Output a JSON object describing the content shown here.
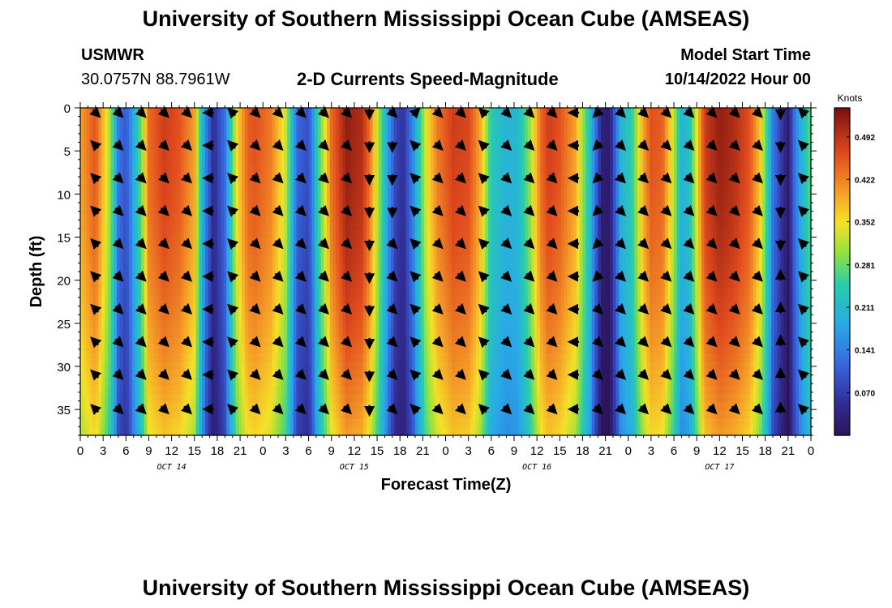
{
  "header": {
    "title": "University of Southern Mississippi Ocean Cube (AMSEAS)",
    "station": "USMWR",
    "location": "30.0757N  88.7961W",
    "subtitle": "2-D Currents Speed-Magnitude",
    "model_start_label": "Model Start Time",
    "model_start_value": "10/14/2022 Hour 00"
  },
  "footer": {
    "title": "University of Southern Mississippi Ocean Cube (AMSEAS)"
  },
  "chart_data": {
    "type": "heatmap",
    "title": "2-D Currents Speed-Magnitude",
    "xlabel": "Forecast Time(Z)",
    "ylabel": "Depth (ft)",
    "x_range_hours": [
      0,
      96
    ],
    "y_range_ft": [
      0,
      38
    ],
    "x_ticks": [
      "0",
      "3",
      "6",
      "9",
      "12",
      "15",
      "18",
      "21",
      "0",
      "3",
      "6",
      "9",
      "12",
      "15",
      "18",
      "21",
      "0",
      "3",
      "6",
      "9",
      "12",
      "15",
      "18",
      "21",
      "0",
      "3",
      "6",
      "9",
      "12",
      "15",
      "18",
      "21",
      "0"
    ],
    "y_ticks": [
      0,
      5,
      10,
      15,
      20,
      25,
      30,
      35
    ],
    "date_labels": [
      {
        "label": "OCT 14",
        "hour": 12
      },
      {
        "label": "OCT 15",
        "hour": 36
      },
      {
        "label": "OCT 16",
        "hour": 60
      },
      {
        "label": "OCT 17",
        "hour": 84
      }
    ],
    "colorbar": {
      "unit": "Knots",
      "min": 0.0,
      "max": 0.54,
      "ticks": [
        "0.492",
        "0.422",
        "0.352",
        "0.281",
        "0.211",
        "0.141",
        "0.070"
      ],
      "tick_values": [
        0.492,
        0.422,
        0.352,
        0.281,
        0.211,
        0.141,
        0.07
      ]
    },
    "speed_profile_hours": [
      0,
      2,
      4,
      5,
      6,
      8,
      9,
      11,
      13,
      15,
      16,
      17.5,
      19,
      20.5,
      22,
      23,
      25,
      27,
      28.5,
      30,
      31,
      33,
      35,
      37,
      38,
      40,
      41.5,
      42.5,
      44,
      45.5,
      47,
      49,
      51,
      52.5,
      54,
      56,
      57.5,
      59,
      60.5,
      61.5,
      63,
      65,
      67,
      68.5,
      69.5,
      71,
      72.5,
      74,
      75,
      76.5,
      78,
      79,
      80,
      82,
      84,
      86,
      88,
      89.5,
      91,
      93,
      94,
      96
    ],
    "speed_profile_knots": [
      0.4,
      0.46,
      0.3,
      0.14,
      0.1,
      0.28,
      0.44,
      0.48,
      0.46,
      0.4,
      0.2,
      0.05,
      0.13,
      0.35,
      0.45,
      0.46,
      0.43,
      0.33,
      0.12,
      0.09,
      0.22,
      0.44,
      0.52,
      0.5,
      0.44,
      0.22,
      0.08,
      0.06,
      0.18,
      0.35,
      0.43,
      0.48,
      0.47,
      0.4,
      0.24,
      0.2,
      0.21,
      0.3,
      0.44,
      0.48,
      0.46,
      0.4,
      0.22,
      0.03,
      0.02,
      0.2,
      0.25,
      0.4,
      0.46,
      0.45,
      0.32,
      0.2,
      0.22,
      0.48,
      0.52,
      0.5,
      0.46,
      0.36,
      0.14,
      0.02,
      0.15,
      0.28
    ],
    "arrow_columns": [
      {
        "hour": 2,
        "dirs": [
          "SE",
          "NW",
          "NW",
          "NW",
          "NW",
          "NW",
          "NW",
          "NW",
          "NW",
          "NW"
        ]
      },
      {
        "hour": 5,
        "dirs": [
          "SE",
          "SE",
          "SE",
          "SE",
          "SE",
          "SE",
          "SE",
          "SE",
          "SE",
          "SE"
        ]
      },
      {
        "hour": 8,
        "dirs": [
          "SE",
          "SE",
          "SE",
          "SE",
          "SE",
          "SE",
          "SE",
          "SE",
          "SE",
          "SE"
        ]
      },
      {
        "hour": 11,
        "dirs": [
          "SE",
          "SE",
          "SE",
          "SE",
          "SE",
          "SE",
          "SE",
          "SE",
          "SE",
          "SE"
        ]
      },
      {
        "hour": 14,
        "dirs": [
          "SE",
          "SE",
          "SE",
          "SE",
          "SE",
          "SE",
          "SE",
          "SE",
          "SE",
          "SE"
        ]
      },
      {
        "hour": 17,
        "dirs": [
          "W",
          "W",
          "W",
          "W",
          "W",
          "W",
          "W",
          "W",
          "W",
          "W"
        ]
      },
      {
        "hour": 20,
        "dirs": [
          "NW",
          "NW",
          "NW",
          "NW",
          "NW",
          "NW",
          "NW",
          "NW",
          "NW",
          "NW"
        ]
      },
      {
        "hour": 23,
        "dirs": [
          "SE",
          "SE",
          "SE",
          "SE",
          "SE",
          "SE",
          "SE",
          "SE",
          "SE",
          "SE"
        ]
      },
      {
        "hour": 26,
        "dirs": [
          "SE",
          "SE",
          "SE",
          "SE",
          "SE",
          "SE",
          "SE",
          "SE",
          "SE",
          "SE"
        ]
      },
      {
        "hour": 29,
        "dirs": [
          "SE",
          "SE",
          "SE",
          "SE",
          "SE",
          "SE",
          "SE",
          "SE",
          "SE",
          "SE"
        ]
      },
      {
        "hour": 32,
        "dirs": [
          "SE",
          "SE",
          "SE",
          "SE",
          "SE",
          "SE",
          "SE",
          "SE",
          "SE",
          "SE"
        ]
      },
      {
        "hour": 35,
        "dirs": [
          "SE",
          "SE",
          "SE",
          "SE",
          "SE",
          "SE",
          "SE",
          "SE",
          "SE",
          "SE"
        ]
      },
      {
        "hour": 38,
        "dirs": [
          "S",
          "S",
          "S",
          "S",
          "S",
          "S",
          "S",
          "S",
          "S",
          "S"
        ]
      },
      {
        "hour": 41,
        "dirs": [
          "SE",
          "S",
          "S",
          "S",
          "SE",
          "SE",
          "SE",
          "SE",
          "SE",
          "SE"
        ]
      },
      {
        "hour": 44,
        "dirs": [
          "NE",
          "NW",
          "NW",
          "NW",
          "NW",
          "NW",
          "NW",
          "NW",
          "NW",
          "NW"
        ]
      },
      {
        "hour": 47,
        "dirs": [
          "SE",
          "SE",
          "SE",
          "SE",
          "SE",
          "SE",
          "SE",
          "SE",
          "SE",
          "SE"
        ]
      },
      {
        "hour": 50,
        "dirs": [
          "SE",
          "SE",
          "SE",
          "SE",
          "SE",
          "SE",
          "SE",
          "SE",
          "SE",
          "SE"
        ]
      },
      {
        "hour": 53,
        "dirs": [
          "NW",
          "NW",
          "NW",
          "NW",
          "NW",
          "NW",
          "NW",
          "NW",
          "NW",
          "NW"
        ]
      },
      {
        "hour": 56,
        "dirs": [
          "SE",
          "SE",
          "SE",
          "SE",
          "SE",
          "SE",
          "SE",
          "SE",
          "SE",
          "SE"
        ]
      },
      {
        "hour": 59,
        "dirs": [
          "SE",
          "SE",
          "SE",
          "SE",
          "SE",
          "SE",
          "SE",
          "SE",
          "SE",
          "SE"
        ]
      },
      {
        "hour": 62,
        "dirs": [
          "SE",
          "SE",
          "SE",
          "SE",
          "SE",
          "SE",
          "SE",
          "SE",
          "SE",
          "SE"
        ]
      },
      {
        "hour": 65,
        "dirs": [
          "W",
          "W",
          "W",
          "W",
          "W",
          "W",
          "W",
          "W",
          "W",
          "W"
        ]
      },
      {
        "hour": 68,
        "dirs": [
          "SW",
          "SW",
          "SW",
          "SW",
          "SW",
          "SW",
          "SE",
          "SE",
          "SE",
          "SE"
        ]
      },
      {
        "hour": 71,
        "dirs": [
          "SE",
          "SE",
          "SE",
          "SE",
          "SE",
          "SE",
          "SE",
          "SE",
          "SE",
          "SE"
        ]
      },
      {
        "hour": 74,
        "dirs": [
          "SE",
          "SE",
          "SE",
          "SE",
          "SE",
          "SE",
          "SE",
          "SE",
          "SE",
          "SE"
        ]
      },
      {
        "hour": 77,
        "dirs": [
          "SE",
          "SE",
          "SE",
          "SE",
          "SE",
          "SE",
          "SE",
          "SE",
          "SE",
          "SE"
        ]
      },
      {
        "hour": 80,
        "dirs": [
          "SE",
          "SE",
          "SE",
          "SE",
          "SE",
          "SE",
          "SE",
          "SE",
          "SE",
          "SE"
        ]
      },
      {
        "hour": 83,
        "dirs": [
          "SE",
          "SE",
          "SE",
          "SE",
          "SE",
          "SE",
          "SE",
          "SE",
          "SE",
          "SE"
        ]
      },
      {
        "hour": 86,
        "dirs": [
          "SE",
          "SE",
          "SE",
          "SE",
          "SE",
          "SE",
          "SE",
          "SE",
          "SE",
          "SE"
        ]
      },
      {
        "hour": 89,
        "dirs": [
          "SE",
          "SE",
          "SE",
          "SE",
          "SE",
          "SE",
          "SE",
          "SE",
          "SE",
          "SE"
        ]
      },
      {
        "hour": 92,
        "dirs": [
          "S",
          "S",
          "S",
          "S",
          "S",
          "N",
          "N",
          "N",
          "N",
          "N"
        ]
      },
      {
        "hour": 95,
        "dirs": [
          "NW",
          "NW",
          "NW",
          "NW",
          "NW",
          "NW",
          "NW",
          "NW",
          "NW",
          "NW"
        ]
      }
    ]
  }
}
